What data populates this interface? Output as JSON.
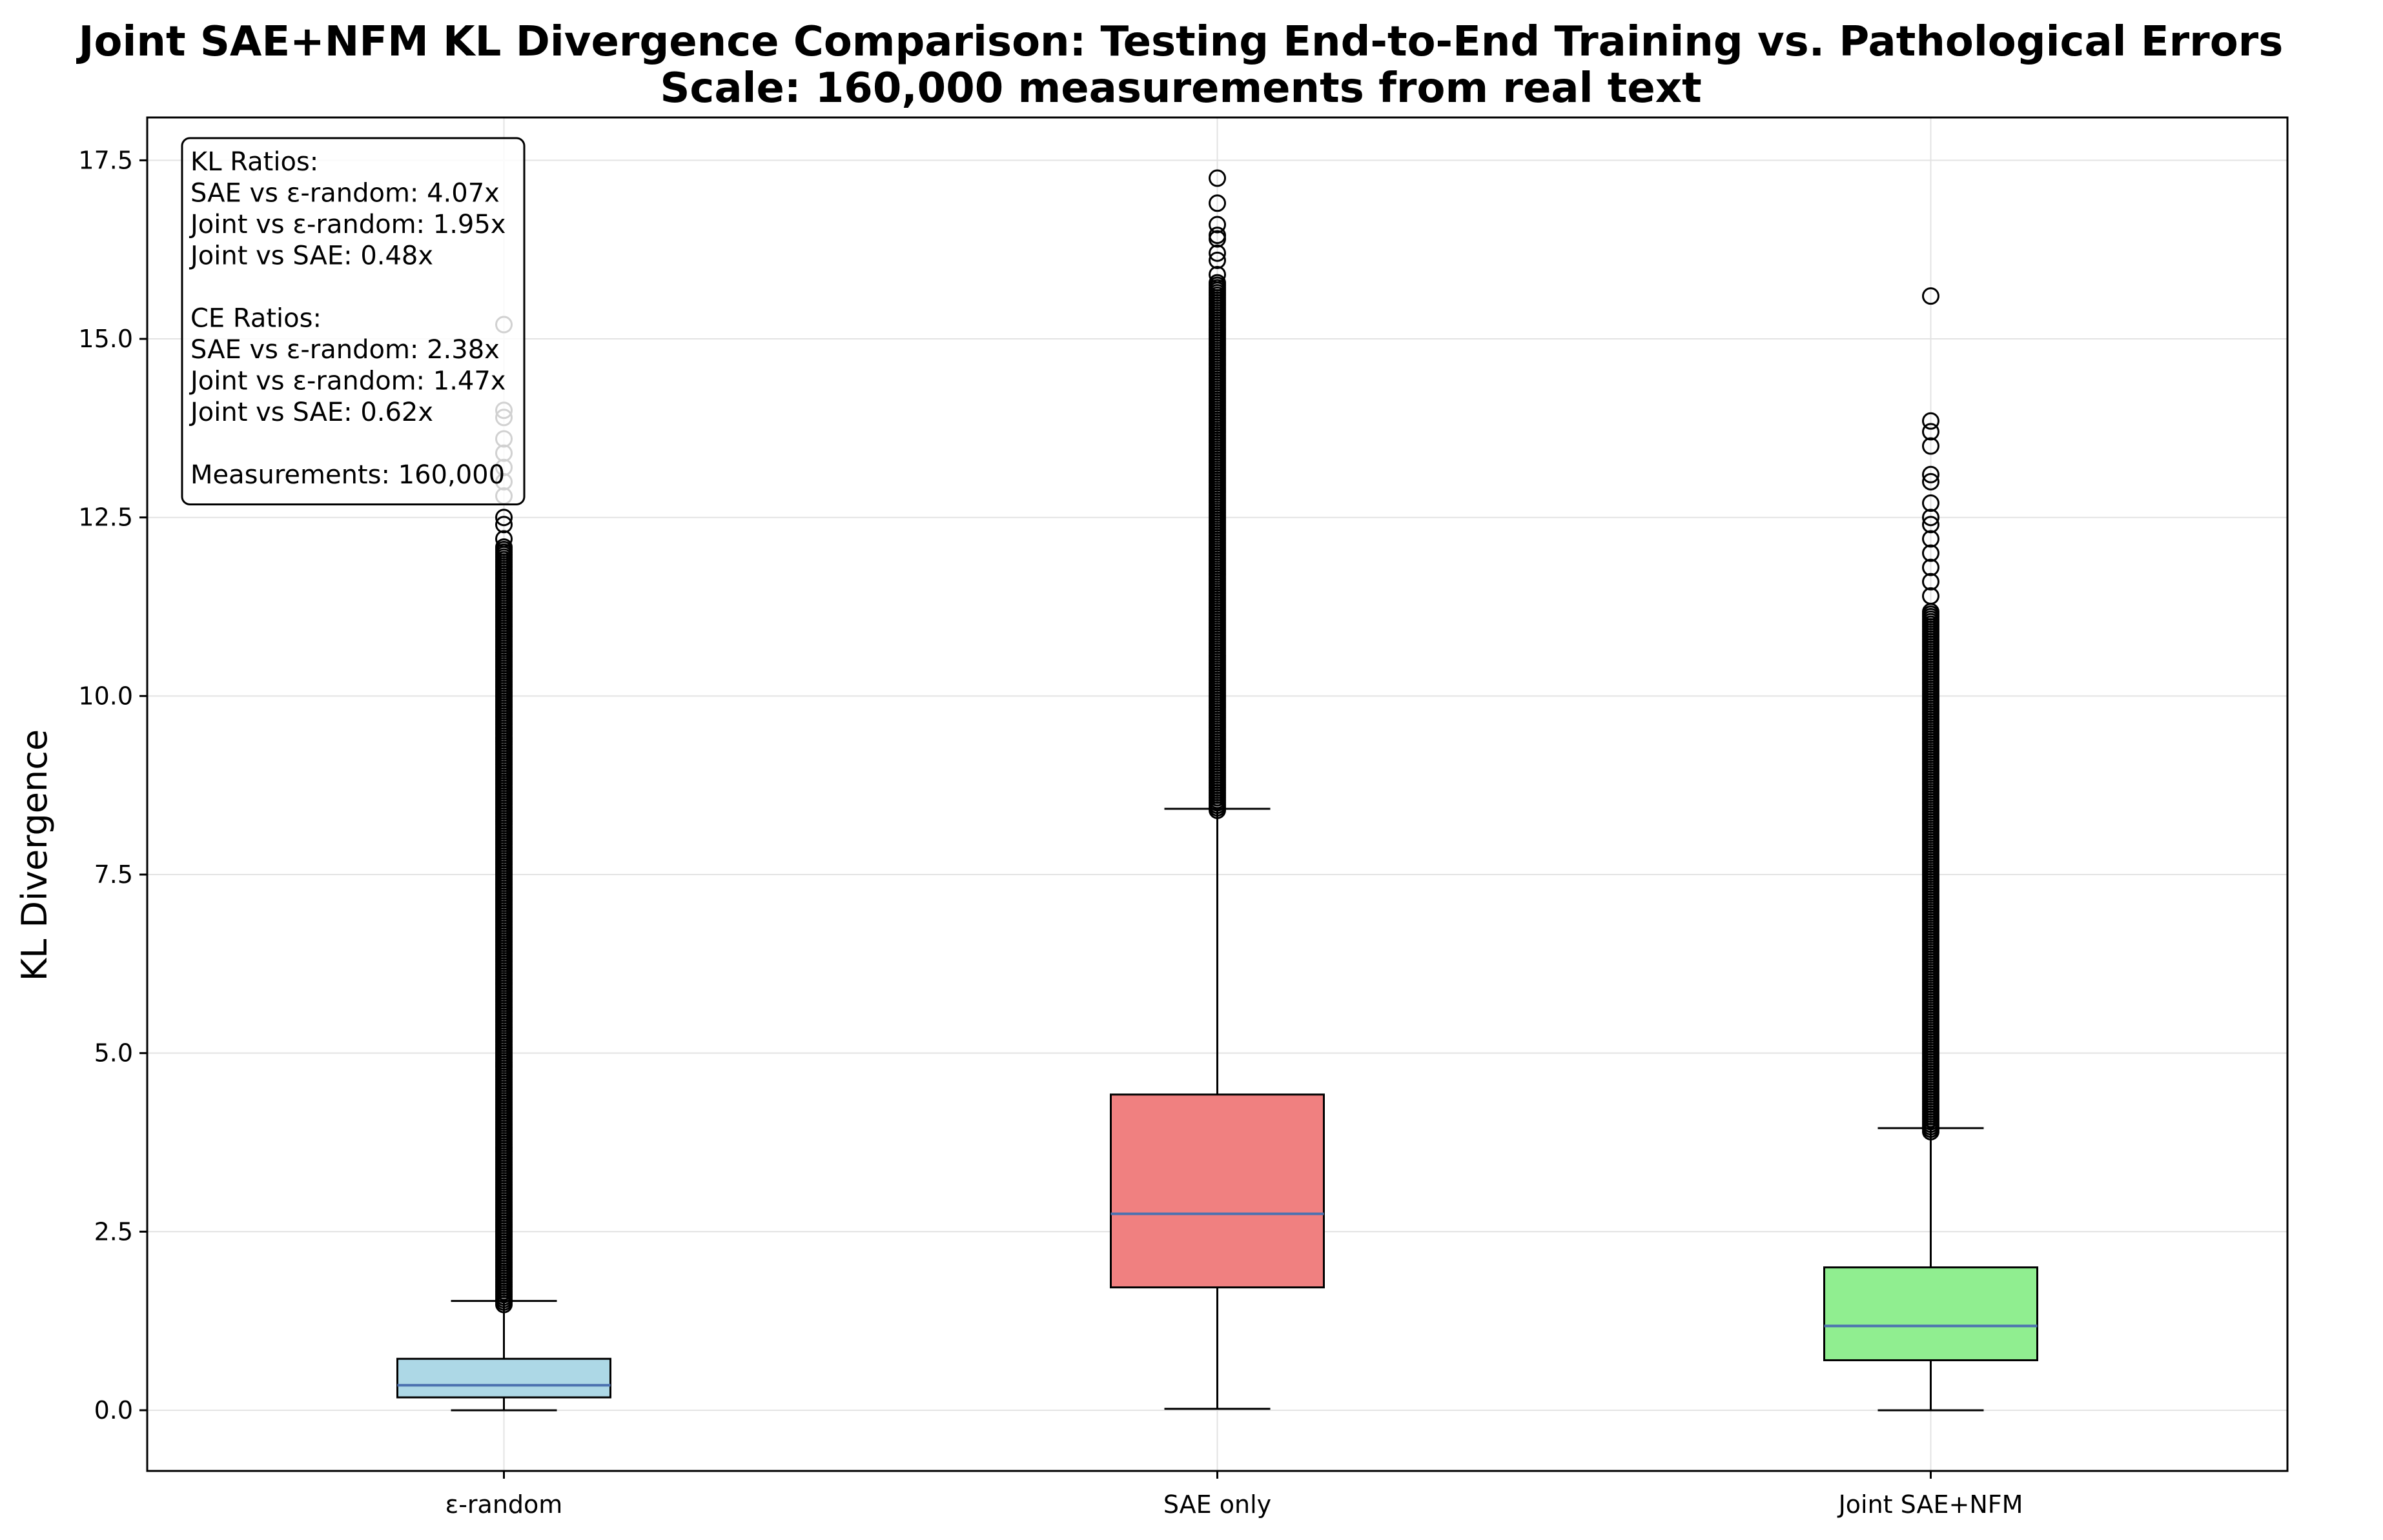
{
  "chart_data": {
    "type": "box",
    "title": "Joint SAE+NFM KL Divergence Comparison: Testing End-to-End Training vs. Pathological Errors",
    "subtitle": "Scale: 160,000 measurements from real text",
    "xlabel": "",
    "ylabel": "KL Divergence",
    "ylim": [
      -0.85,
      18.1
    ],
    "yticks": [
      0.0,
      2.5,
      5.0,
      7.5,
      10.0,
      12.5,
      15.0,
      17.5
    ],
    "ytick_labels": [
      "0.0",
      "2.5",
      "5.0",
      "7.5",
      "10.0",
      "12.5",
      "15.0",
      "17.5"
    ],
    "grid": true,
    "categories": [
      "ε-random",
      "SAE only",
      "Joint SAE+NFM"
    ],
    "boxes": [
      {
        "category": "ε-random",
        "color": "#add8e6",
        "whisker_low": 0.0,
        "q1": 0.18,
        "median": 0.35,
        "q3": 0.72,
        "whisker_high": 1.53,
        "outlier_dense_range": [
          1.48,
          12.1
        ],
        "outliers": [
          12.2,
          12.4,
          12.5,
          12.8,
          13.0,
          13.2,
          13.4,
          13.6,
          13.9,
          14.0,
          15.2
        ]
      },
      {
        "category": "SAE only",
        "color": "#f08080",
        "whisker_low": 0.02,
        "q1": 1.72,
        "median": 2.75,
        "q3": 4.42,
        "whisker_high": 8.42,
        "outlier_dense_range": [
          8.4,
          15.8
        ],
        "outliers": [
          15.9,
          16.1,
          16.2,
          16.4,
          16.45,
          16.6,
          16.9,
          17.25
        ]
      },
      {
        "category": "Joint SAE+NFM",
        "color": "#90ee90",
        "whisker_low": 0.0,
        "q1": 0.7,
        "median": 1.18,
        "q3": 2.0,
        "whisker_high": 3.95,
        "outlier_dense_range": [
          3.9,
          11.2
        ],
        "outliers": [
          11.4,
          11.6,
          11.8,
          12.0,
          12.2,
          12.4,
          12.5,
          12.7,
          13.0,
          13.1,
          13.5,
          13.7,
          13.85,
          15.6
        ]
      }
    ],
    "median_color": "#4c72b0"
  },
  "stats_box": {
    "lines": [
      "KL Ratios:",
      "SAE vs ε-random: 4.07x",
      "Joint vs ε-random: 1.95x",
      "Joint vs SAE: 0.48x",
      "",
      "CE Ratios:",
      "SAE vs ε-random: 2.38x",
      "Joint vs ε-random: 1.47x",
      "Joint vs SAE: 0.62x",
      "",
      "Measurements: 160,000"
    ]
  }
}
